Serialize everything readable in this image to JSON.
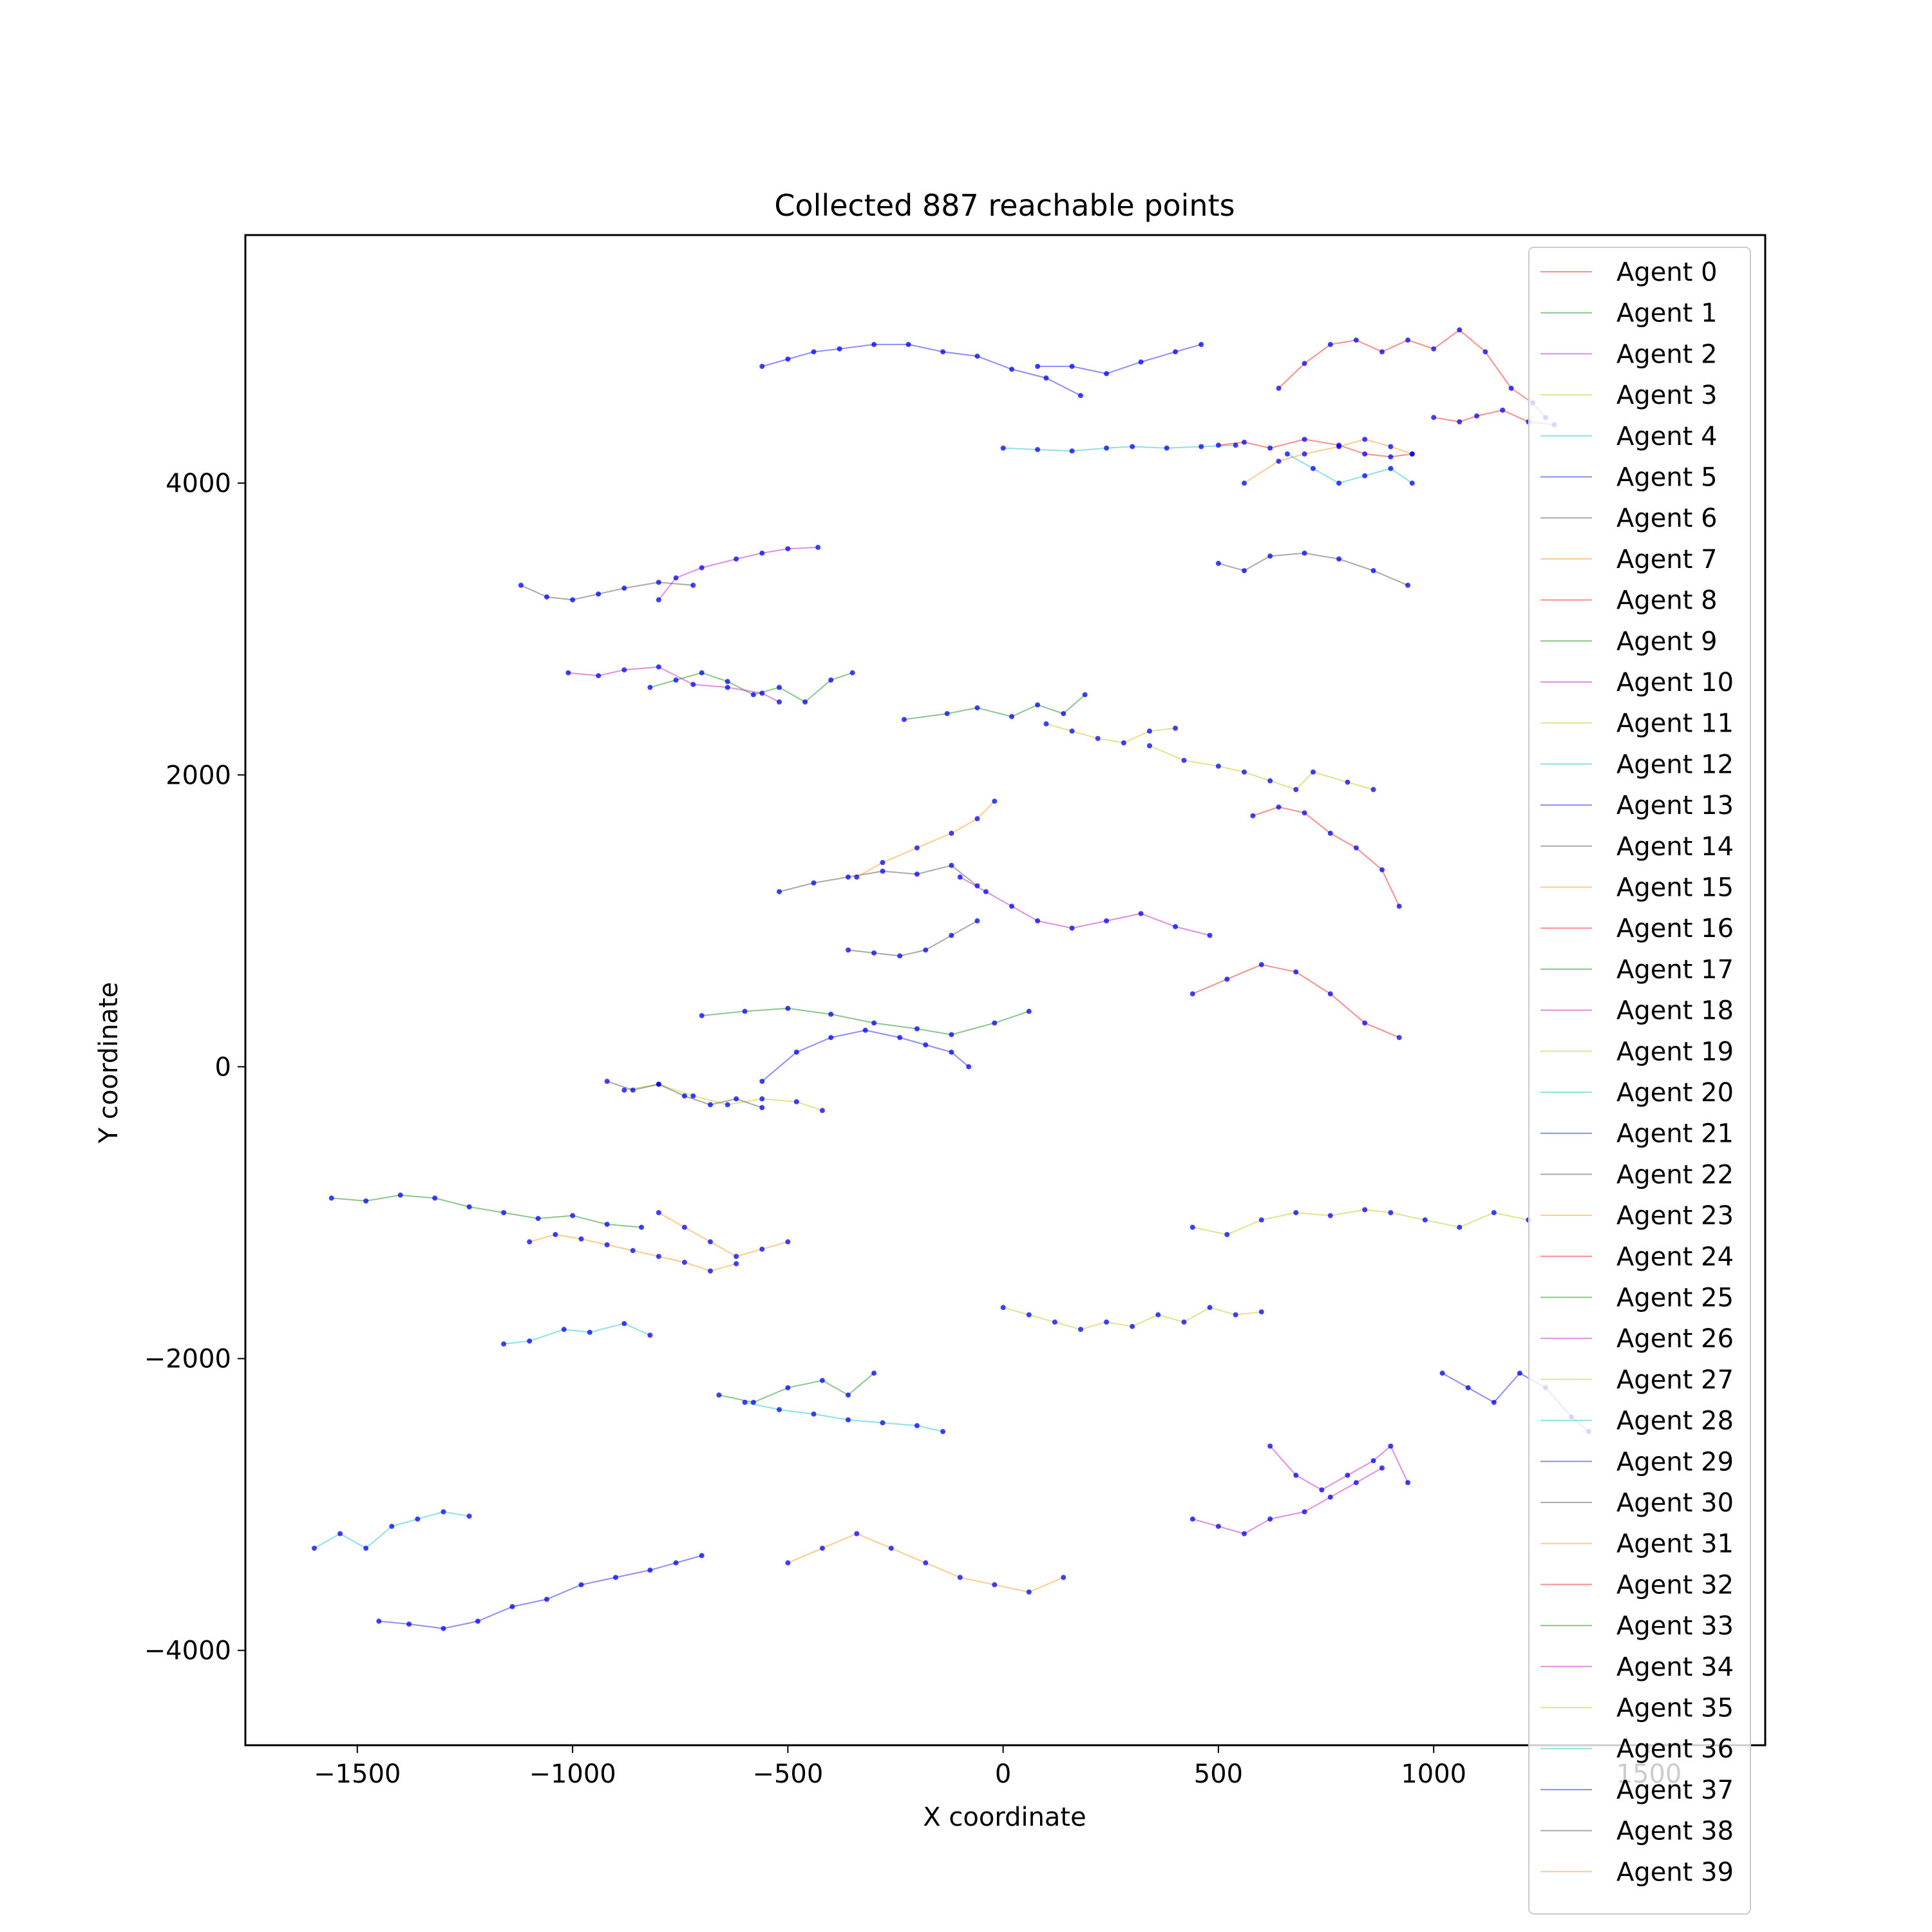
{
  "chart_data": {
    "type": "line",
    "title": "Collected 887 reachable points",
    "xlabel": "X coordinate",
    "ylabel": "Y coordinate",
    "xlim": [
      -1760,
      1770
    ],
    "ylim": [
      -4650,
      5700
    ],
    "x_ticks": [
      -1500,
      -1000,
      -500,
      0,
      500,
      1000,
      1500
    ],
    "y_ticks": [
      -4000,
      -2000,
      0,
      2000,
      4000
    ],
    "x_tick_labels": [
      "−1500",
      "−1000",
      "−500",
      "0",
      "500",
      "1000",
      "1500"
    ],
    "y_tick_labels": [
      "−4000",
      "−2000",
      "0",
      "2000",
      "4000"
    ],
    "grid": false,
    "legend_position": "upper right",
    "point_color": "#0000ff",
    "series": [
      {
        "name": "Agent 0",
        "color": "#ff0000",
        "x": [
          640,
          700,
          760,
          820,
          880,
          940,
          1000,
          1060,
          1120,
          1180,
          1230,
          1260
        ],
        "y": [
          4650,
          4820,
          4950,
          4980,
          4900,
          4980,
          4920,
          5050,
          4900,
          4650,
          4550,
          4450
        ]
      },
      {
        "name": "Agent 1",
        "color": "#008000",
        "x": [
          -230,
          -130,
          -60,
          20,
          80,
          140,
          190
        ],
        "y": [
          2380,
          2420,
          2460,
          2400,
          2480,
          2420,
          2550
        ]
      },
      {
        "name": "Agent 2",
        "color": "#bf00bf",
        "x": [
          -800,
          -760,
          -700,
          -620,
          -560,
          -500,
          -430
        ],
        "y": [
          3200,
          3350,
          3420,
          3480,
          3520,
          3550,
          3560
        ]
      },
      {
        "name": "Agent 3",
        "color": "#bfbf00",
        "x": [
          340,
          420,
          500,
          560,
          620,
          680,
          720,
          800,
          860
        ],
        "y": [
          2200,
          2100,
          2060,
          2020,
          1960,
          1900,
          2020,
          1950,
          1900
        ]
      },
      {
        "name": "Agent 4",
        "color": "#00bfbf",
        "x": [
          0,
          80,
          160,
          240,
          300,
          380,
          460,
          540
        ],
        "y": [
          4240,
          4230,
          4220,
          4240,
          4250,
          4240,
          4250,
          4260
        ]
      },
      {
        "name": "Agent 5",
        "color": "#0000ff",
        "x": [
          -560,
          -500,
          -440,
          -380,
          -300,
          -220,
          -140,
          -60,
          20,
          100,
          180
        ],
        "y": [
          4800,
          4850,
          4900,
          4920,
          4950,
          4950,
          4900,
          4870,
          4780,
          4720,
          4600
        ]
      },
      {
        "name": "Agent 6",
        "color": "#404040",
        "x": [
          -1120,
          -1060,
          -1000,
          -940,
          -880,
          -800,
          -720
        ],
        "y": [
          3300,
          3220,
          3200,
          3240,
          3280,
          3320,
          3300
        ]
      },
      {
        "name": "Agent 7",
        "color": "#ff8c00",
        "x": [
          560,
          640,
          700,
          780,
          840,
          900,
          950
        ],
        "y": [
          4000,
          4150,
          4200,
          4250,
          4300,
          4250,
          4200
        ]
      },
      {
        "name": "Agent 8",
        "color": "#ff0000",
        "x": [
          500,
          560,
          620,
          700,
          780,
          840,
          900,
          950
        ],
        "y": [
          4260,
          4280,
          4240,
          4300,
          4260,
          4200,
          4180,
          4200
        ]
      },
      {
        "name": "Agent 9",
        "color": "#008000",
        "x": [
          -820,
          -760,
          -700,
          -640,
          -580,
          -520,
          -460,
          -400,
          -350
        ],
        "y": [
          2600,
          2650,
          2700,
          2640,
          2550,
          2600,
          2500,
          2650,
          2700
        ]
      },
      {
        "name": "Agent 10",
        "color": "#bf00bf",
        "x": [
          -1010,
          -940,
          -880,
          -800,
          -720,
          -640,
          -560,
          -520
        ],
        "y": [
          2700,
          2680,
          2720,
          2740,
          2620,
          2600,
          2560,
          2500
        ]
      },
      {
        "name": "Agent 11",
        "color": "#bfbf00",
        "x": [
          100,
          160,
          220,
          280,
          340,
          400
        ],
        "y": [
          2350,
          2300,
          2250,
          2220,
          2300,
          2320
        ]
      },
      {
        "name": "Agent 12",
        "color": "#00bfbf",
        "x": [
          660,
          720,
          780,
          840,
          900,
          950
        ],
        "y": [
          4200,
          4100,
          4000,
          4050,
          4100,
          4000
        ]
      },
      {
        "name": "Agent 13",
        "color": "#0000ff",
        "x": [
          80,
          160,
          240,
          320,
          400,
          460
        ],
        "y": [
          4800,
          4800,
          4750,
          4830,
          4900,
          4950
        ]
      },
      {
        "name": "Agent 14",
        "color": "#404040",
        "x": [
          -520,
          -440,
          -360,
          -280,
          -200,
          -120,
          -60
        ],
        "y": [
          1200,
          1260,
          1300,
          1340,
          1320,
          1380,
          1240
        ]
      },
      {
        "name": "Agent 15",
        "color": "#ff8c00",
        "x": [
          -340,
          -280,
          -200,
          -120,
          -60,
          -20
        ],
        "y": [
          1300,
          1400,
          1500,
          1600,
          1700,
          1820
        ]
      },
      {
        "name": "Agent 16",
        "color": "#ff0000",
        "x": [
          580,
          640,
          700,
          760,
          820,
          880,
          920
        ],
        "y": [
          1720,
          1780,
          1740,
          1600,
          1500,
          1350,
          1100
        ]
      },
      {
        "name": "Agent 17",
        "color": "#008000",
        "x": [
          -700,
          -600,
          -500,
          -400,
          -300,
          -200,
          -120,
          -20,
          60
        ],
        "y": [
          350,
          380,
          400,
          360,
          300,
          260,
          220,
          300,
          380
        ]
      },
      {
        "name": "Agent 18",
        "color": "#bf00bf",
        "x": [
          -100,
          -40,
          20,
          80,
          160,
          240,
          320,
          400,
          480
        ],
        "y": [
          1300,
          1200,
          1100,
          1000,
          950,
          1000,
          1050,
          960,
          900
        ]
      },
      {
        "name": "Agent 19",
        "color": "#bfbf00",
        "x": [
          -880,
          -800,
          -720,
          -640,
          -560,
          -480,
          -420
        ],
        "y": [
          -160,
          -120,
          -200,
          -260,
          -220,
          -240,
          -300
        ]
      },
      {
        "name": "Agent 20",
        "color": "#00bfbf",
        "x": [
          -1160,
          -1100,
          -1020,
          -960,
          -880,
          -820
        ],
        "y": [
          -1900,
          -1880,
          -1800,
          -1820,
          -1760,
          -1840
        ]
      },
      {
        "name": "Agent 21",
        "color": "#0000ff",
        "x": [
          -560,
          -480,
          -400,
          -320,
          -240,
          -180,
          -120,
          -80
        ],
        "y": [
          -100,
          100,
          200,
          250,
          200,
          150,
          100,
          0
        ]
      },
      {
        "name": "Agent 22",
        "color": "#404040",
        "x": [
          -920,
          -860,
          -800,
          -740,
          -680,
          -620,
          -560
        ],
        "y": [
          -100,
          -160,
          -120,
          -200,
          -260,
          -220,
          -280
        ]
      },
      {
        "name": "Agent 23",
        "color": "#ff8c00",
        "x": [
          -1100,
          -1040,
          -980,
          -920,
          -860,
          -800,
          -740,
          -680,
          -620
        ],
        "y": [
          -1200,
          -1150,
          -1180,
          -1220,
          -1260,
          -1300,
          -1340,
          -1400,
          -1350
        ]
      },
      {
        "name": "Agent 24",
        "color": "#ff0000",
        "x": [
          1000,
          1060,
          1100,
          1160,
          1220,
          1280
        ],
        "y": [
          4450,
          4420,
          4460,
          4500,
          4420,
          4400
        ]
      },
      {
        "name": "Agent 25",
        "color": "#008000",
        "x": [
          -1560,
          -1480,
          -1400,
          -1320,
          -1240,
          -1160,
          -1080,
          -1000,
          -920,
          -840
        ],
        "y": [
          -900,
          -920,
          -880,
          -900,
          -960,
          -1000,
          -1040,
          -1020,
          -1080,
          -1100
        ]
      },
      {
        "name": "Agent 26",
        "color": "#bf00bf",
        "x": [
          620,
          680,
          740,
          800,
          860,
          900,
          940
        ],
        "y": [
          -2600,
          -2800,
          -2900,
          -2800,
          -2700,
          -2600,
          -2850
        ]
      },
      {
        "name": "Agent 27",
        "color": "#bfbf00",
        "x": [
          440,
          520,
          600,
          680,
          760,
          840,
          900,
          980,
          1060,
          1140,
          1220
        ],
        "y": [
          -1100,
          -1150,
          -1050,
          -1000,
          -1020,
          -980,
          -1000,
          -1050,
          -1100,
          -1000,
          -1050
        ]
      },
      {
        "name": "Agent 28",
        "color": "#00bfbf",
        "x": [
          -600,
          -520,
          -440,
          -360,
          -280,
          -200,
          -140
        ],
        "y": [
          -2300,
          -2350,
          -2380,
          -2420,
          -2440,
          -2460,
          -2500
        ]
      },
      {
        "name": "Agent 29",
        "color": "#0000ff",
        "x": [
          1020,
          1080,
          1140,
          1200,
          1260,
          1320,
          1360
        ],
        "y": [
          -2100,
          -2200,
          -2300,
          -2100,
          -2200,
          -2400,
          -2500
        ]
      },
      {
        "name": "Agent 30",
        "color": "#404040",
        "x": [
          500,
          560,
          620,
          700,
          780,
          860,
          940
        ],
        "y": [
          3450,
          3400,
          3500,
          3520,
          3480,
          3400,
          3300
        ]
      },
      {
        "name": "Agent 31",
        "color": "#ff8c00",
        "x": [
          -500,
          -420,
          -340,
          -260,
          -180,
          -100,
          -20,
          60,
          140
        ],
        "y": [
          -3400,
          -3300,
          -3200,
          -3300,
          -3400,
          -3500,
          -3550,
          -3600,
          -3500
        ]
      },
      {
        "name": "Agent 32",
        "color": "#ff0000",
        "x": [
          440,
          520,
          600,
          680,
          760,
          840,
          920
        ],
        "y": [
          500,
          600,
          700,
          650,
          500,
          300,
          200
        ]
      },
      {
        "name": "Agent 33",
        "color": "#008000",
        "x": [
          -660,
          -580,
          -500,
          -420,
          -360,
          -300
        ],
        "y": [
          -2250,
          -2300,
          -2200,
          -2150,
          -2250,
          -2100
        ]
      },
      {
        "name": "Agent 34",
        "color": "#bf00bf",
        "x": [
          440,
          500,
          560,
          620,
          700,
          760,
          820,
          880
        ],
        "y": [
          -3100,
          -3150,
          -3200,
          -3100,
          -3050,
          -2950,
          -2850,
          -2750
        ]
      },
      {
        "name": "Agent 35",
        "color": "#bfbf00",
        "x": [
          0,
          60,
          120,
          180,
          240,
          300,
          360,
          420,
          480,
          540,
          600
        ],
        "y": [
          -1650,
          -1700,
          -1750,
          -1800,
          -1750,
          -1780,
          -1700,
          -1750,
          -1650,
          -1700,
          -1680
        ]
      },
      {
        "name": "Agent 36",
        "color": "#00bfbf",
        "x": [
          -1600,
          -1540,
          -1480,
          -1420,
          -1360,
          -1300,
          -1240
        ],
        "y": [
          -3300,
          -3200,
          -3300,
          -3150,
          -3100,
          -3050,
          -3080
        ]
      },
      {
        "name": "Agent 37",
        "color": "#0000ff",
        "x": [
          -1450,
          -1380,
          -1300,
          -1220,
          -1140,
          -1060,
          -980,
          -900,
          -820,
          -760,
          -700
        ],
        "y": [
          -3800,
          -3820,
          -3850,
          -3800,
          -3700,
          -3650,
          -3550,
          -3500,
          -3450,
          -3400,
          -3350
        ]
      },
      {
        "name": "Agent 38",
        "color": "#404040",
        "x": [
          -360,
          -300,
          -240,
          -180,
          -120,
          -60
        ],
        "y": [
          800,
          780,
          760,
          800,
          900,
          1000
        ]
      },
      {
        "name": "Agent 39",
        "color": "#ff8c00",
        "x": [
          -800,
          -740,
          -680,
          -620,
          -560,
          -500
        ],
        "y": [
          -1000,
          -1100,
          -1200,
          -1300,
          -1250,
          -1200
        ]
      }
    ]
  }
}
